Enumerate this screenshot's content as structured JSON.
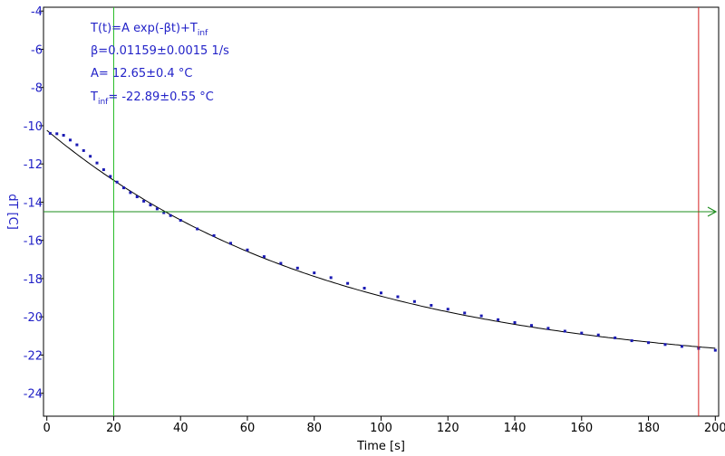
{
  "chart_data": {
    "type": "scatter",
    "title": "",
    "xlabel": "Time [s]",
    "ylabel": "dT [C]",
    "xlim": [
      -1,
      201
    ],
    "ylim": [
      -25.2,
      -3.8
    ],
    "xticks": [
      0,
      20,
      40,
      60,
      80,
      100,
      120,
      140,
      160,
      180,
      200
    ],
    "yticks": [
      -4,
      -6,
      -8,
      -10,
      -12,
      -14,
      -16,
      -18,
      -20,
      -22,
      -24
    ],
    "grid": false,
    "annotations": {
      "model_main": "T(t)=A exp(-βt)+T",
      "model_sub": "inf",
      "beta": "β=0.01159±0.0015 1/s",
      "amplitude": "A= 12.65±0.4 °C",
      "tinf_main": "T",
      "tinf_sub": "inf",
      "tinf_rest": "= -22.89±0.55 °C"
    },
    "fit": {
      "A": 12.65,
      "beta": 0.01159,
      "T_inf": -22.89,
      "x_range": [
        0,
        200
      ]
    },
    "markers": {
      "green_vertical_x": 20,
      "red_vertical_x": 195,
      "green_horizontal_y": -14.5
    },
    "series": [
      {
        "points": [
          [
            1,
            -10.4
          ],
          [
            3,
            -10.42
          ],
          [
            5,
            -10.5
          ],
          [
            7,
            -10.75
          ],
          [
            9,
            -11.0
          ],
          [
            11,
            -11.3
          ],
          [
            13,
            -11.6
          ],
          [
            15,
            -11.95
          ],
          [
            17,
            -12.3
          ],
          [
            19,
            -12.65
          ],
          [
            21,
            -12.95
          ],
          [
            23,
            -13.25
          ],
          [
            25,
            -13.5
          ],
          [
            27,
            -13.72
          ],
          [
            29,
            -13.95
          ],
          [
            31,
            -14.15
          ],
          [
            33,
            -14.35
          ],
          [
            35,
            -14.55
          ],
          [
            37,
            -14.7
          ],
          [
            40,
            -14.95
          ],
          [
            45,
            -15.4
          ],
          [
            50,
            -15.75
          ],
          [
            55,
            -16.15
          ],
          [
            60,
            -16.5
          ],
          [
            65,
            -16.85
          ],
          [
            70,
            -17.2
          ],
          [
            75,
            -17.45
          ],
          [
            80,
            -17.7
          ],
          [
            85,
            -17.95
          ],
          [
            90,
            -18.25
          ],
          [
            95,
            -18.5
          ],
          [
            100,
            -18.75
          ],
          [
            105,
            -18.95
          ],
          [
            110,
            -19.2
          ],
          [
            115,
            -19.4
          ],
          [
            120,
            -19.6
          ],
          [
            125,
            -19.8
          ],
          [
            130,
            -19.95
          ],
          [
            135,
            -20.15
          ],
          [
            140,
            -20.3
          ],
          [
            145,
            -20.45
          ],
          [
            150,
            -20.6
          ],
          [
            155,
            -20.75
          ],
          [
            160,
            -20.85
          ],
          [
            165,
            -20.95
          ],
          [
            170,
            -21.1
          ],
          [
            175,
            -21.25
          ],
          [
            180,
            -21.35
          ],
          [
            185,
            -21.45
          ],
          [
            190,
            -21.55
          ],
          [
            195,
            -21.65
          ],
          [
            200,
            -21.75
          ]
        ]
      }
    ],
    "colors": {
      "points": "#1a1ab4",
      "fit_line": "#000000",
      "annotation_text": "#2323c8",
      "ylabel_text": "#2323c8",
      "green_cursor": "#22bb22",
      "horizontal_cursor": "#1e8c1e",
      "red_cursor": "#d42020",
      "axis": "#000000"
    }
  }
}
